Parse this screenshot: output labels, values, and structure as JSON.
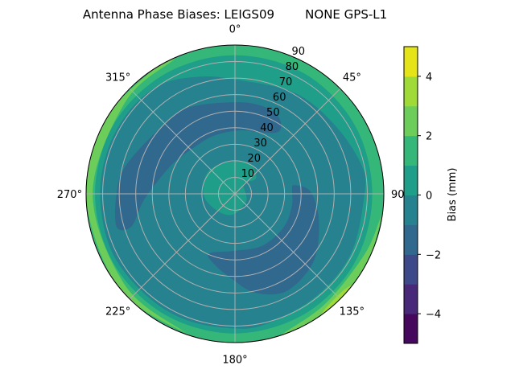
{
  "chart_data": {
    "type": "polar-contour",
    "title": "Antenna Phase Biases: LEIGS09        NONE GPS-L1",
    "theta_zero": "top",
    "theta_direction": "clockwise",
    "azimuth_tick_labels": [
      "0°",
      "45°",
      "90°",
      "135°",
      "180°",
      "225°",
      "270°",
      "315°"
    ],
    "azimuth_ticks": [
      0,
      45,
      90,
      135,
      180,
      225,
      270,
      315
    ],
    "radial_ticks": [
      10,
      20,
      30,
      40,
      50,
      60,
      70,
      80,
      90
    ],
    "radial_tick_labels": [
      "10",
      "20",
      "30",
      "40",
      "50",
      "60",
      "70",
      "80",
      "90"
    ],
    "radial_label_azimuth": 22.5,
    "rlim": [
      0,
      90
    ],
    "grid": true,
    "colormap": "viridis",
    "levels": [
      -5,
      -4,
      -3,
      -2,
      -1,
      0,
      1,
      2,
      3,
      4,
      5
    ],
    "level_colors": [
      "#46085c",
      "#482878",
      "#3e4989",
      "#31688e",
      "#26828e",
      "#1f9e89",
      "#35b779",
      "#6ccd5a",
      "#a0da39",
      "#e5e419"
    ],
    "colorbar": {
      "label": "Bias (mm)",
      "ticks": [
        -4,
        -2,
        0,
        2,
        4
      ],
      "tick_labels": [
        "−4",
        "−2",
        "0",
        "2",
        "4"
      ],
      "range": [
        -5,
        5
      ],
      "placement": "right"
    },
    "regions": [
      {
        "band": [
          1,
          2
        ],
        "points": "full"
      },
      {
        "band": [
          0,
          1
        ],
        "points": [
          [
            0,
            83.8
          ],
          [
            30,
            84
          ],
          [
            60,
            83.5
          ],
          [
            90,
            83
          ],
          [
            120,
            83.5
          ],
          [
            150,
            84
          ],
          [
            180,
            84.5
          ],
          [
            210,
            84.5
          ],
          [
            240,
            84.6
          ],
          [
            270,
            84.6
          ],
          [
            300,
            84.5
          ],
          [
            330,
            84
          ]
        ]
      },
      {
        "band": [
          -1,
          0
        ],
        "points": [
          [
            0,
            69.2
          ],
          [
            30.6,
            70.9
          ],
          [
            55.4,
            73.3
          ],
          [
            77.3,
            78.5
          ],
          [
            90,
            78.3
          ],
          [
            117.2,
            78.9
          ],
          [
            141.6,
            79.1
          ],
          [
            165.7,
            80.8
          ],
          [
            180,
            81.5
          ],
          [
            200.5,
            81.8
          ],
          [
            220.5,
            81.6
          ],
          [
            244,
            82.3
          ],
          [
            267.4,
            81.5
          ],
          [
            288.2,
            81.4
          ],
          [
            307.8,
            81.3
          ],
          [
            325.7,
            79.9
          ],
          [
            342.6,
            74.2
          ]
        ]
      },
      {
        "band": [
          -2,
          -1
        ],
        "points": [
          [
            254.5,
            74.3
          ],
          [
            270,
            71.6
          ],
          [
            284.4,
            68.2
          ],
          [
            311.6,
            60.2
          ],
          [
            331.1,
            59.4
          ],
          [
            0,
            55.4
          ],
          [
            17.5,
            55.6
          ],
          [
            29.6,
            53.5
          ],
          [
            35.3,
            47
          ],
          [
            28.4,
            41.8
          ],
          [
            5.5,
            38.6
          ],
          [
            340.4,
            37.4
          ],
          [
            320.3,
            37.3
          ],
          [
            297.3,
            41.4
          ],
          [
            277.1,
            48.4
          ],
          [
            264.6,
            56.2
          ],
          [
            252.4,
            65.8
          ]
        ]
      },
      {
        "band": [
          -2,
          -1
        ],
        "points": [
          [
            81.8,
            36.5
          ],
          [
            88.6,
            45.9
          ],
          [
            108.2,
            53.4
          ],
          [
            130.8,
            62.7
          ],
          [
            152,
            66.6
          ],
          [
            168.8,
            60.8
          ],
          [
            183.2,
            50.8
          ],
          [
            196.4,
            44.4
          ],
          [
            203.5,
            39.4
          ],
          [
            180,
            34.5
          ],
          [
            151.9,
            35.5
          ],
          [
            123.8,
            35.7
          ],
          [
            101.5,
            35.2
          ],
          [
            85.4,
            34.6
          ]
        ]
      },
      {
        "band": [
          0,
          1
        ],
        "points": [
          [
            0,
            19.8
          ],
          [
            30.5,
            20
          ],
          [
            53.9,
            15.6
          ],
          [
            41.5,
            8
          ],
          [
            120,
            8
          ],
          [
            185,
            12.6
          ],
          [
            227,
            14.9
          ],
          [
            268.5,
            19
          ],
          [
            312,
            21.1
          ]
        ]
      },
      {
        "band": [
          2,
          3
        ],
        "points": [
          [
            195,
            90.5
          ],
          [
            230,
            90.5
          ],
          [
            270,
            90.5
          ],
          [
            300,
            90.5
          ],
          [
            330,
            90.5
          ],
          [
            340,
            90.5
          ],
          [
            335,
            89
          ],
          [
            310,
            86.5
          ],
          [
            270,
            86
          ],
          [
            230,
            86.5
          ],
          [
            200,
            89
          ]
        ]
      },
      {
        "band": [
          2,
          3
        ],
        "points": [
          [
            95,
            90.5
          ],
          [
            120,
            90.5
          ],
          [
            145,
            90.5
          ],
          [
            165,
            90.5
          ],
          [
            160,
            89
          ],
          [
            140,
            86
          ],
          [
            115,
            86.5
          ],
          [
            100,
            89
          ]
        ]
      },
      {
        "band": [
          3,
          4
        ],
        "points": [
          [
            128,
            90.5
          ],
          [
            145,
            90.5
          ],
          [
            142,
            88.5
          ],
          [
            135,
            87.5
          ],
          [
            130,
            88.5
          ]
        ]
      }
    ]
  }
}
